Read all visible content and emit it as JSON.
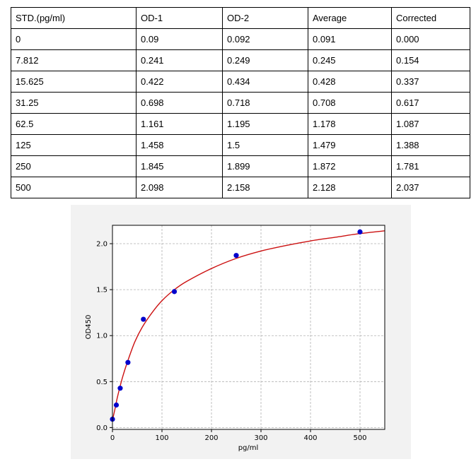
{
  "table": {
    "headers": [
      "STD.(pg/ml)",
      "OD-1",
      "OD-2",
      "Average",
      "Corrected"
    ],
    "rows": [
      [
        "0",
        "0.09",
        "0.092",
        "0.091",
        "0.000"
      ],
      [
        "7.812",
        "0.241",
        "0.249",
        "0.245",
        "0.154"
      ],
      [
        "15.625",
        "0.422",
        "0.434",
        "0.428",
        "0.337"
      ],
      [
        "31.25",
        "0.698",
        "0.718",
        "0.708",
        "0.617"
      ],
      [
        "62.5",
        "1.161",
        "1.195",
        "1.178",
        "1.087"
      ],
      [
        "125",
        "1.458",
        "1.5",
        "1.479",
        "1.388"
      ],
      [
        "250",
        "1.845",
        "1.899",
        "1.872",
        "1.781"
      ],
      [
        "500",
        "2.098",
        "2.158",
        "2.128",
        "2.037"
      ]
    ]
  },
  "chart_data": {
    "type": "scatter",
    "title": "",
    "xlabel": "pg/ml",
    "ylabel": "OD450",
    "xlim": [
      0,
      550
    ],
    "ylim": [
      -0.02,
      2.2
    ],
    "xticks": [
      0,
      100,
      200,
      300,
      400,
      500
    ],
    "xtick_labels": [
      "0",
      "100",
      "200",
      "300",
      "400",
      "500"
    ],
    "yticks": [
      0.0,
      0.5,
      1.0,
      1.5,
      2.0
    ],
    "ytick_labels": [
      "0.0",
      "0.5",
      "1.0",
      "1.5",
      "2.0"
    ],
    "grid": true,
    "series": [
      {
        "kind": "points",
        "color": "#0000cc",
        "x": [
          0,
          7.812,
          15.625,
          31.25,
          62.5,
          125,
          250,
          500
        ],
        "y": [
          0.091,
          0.245,
          0.428,
          0.708,
          1.178,
          1.479,
          1.872,
          2.128
        ]
      },
      {
        "kind": "fit-curve",
        "color": "#cc1111",
        "x": [
          0,
          5,
          10,
          20,
          30,
          45,
          60,
          80,
          100,
          125,
          150,
          200,
          250,
          300,
          350,
          400,
          450,
          500,
          550
        ],
        "y": [
          0.08,
          0.2,
          0.33,
          0.54,
          0.71,
          0.93,
          1.09,
          1.25,
          1.38,
          1.5,
          1.59,
          1.73,
          1.84,
          1.92,
          1.98,
          2.03,
          2.07,
          2.11,
          2.14
        ]
      }
    ]
  }
}
